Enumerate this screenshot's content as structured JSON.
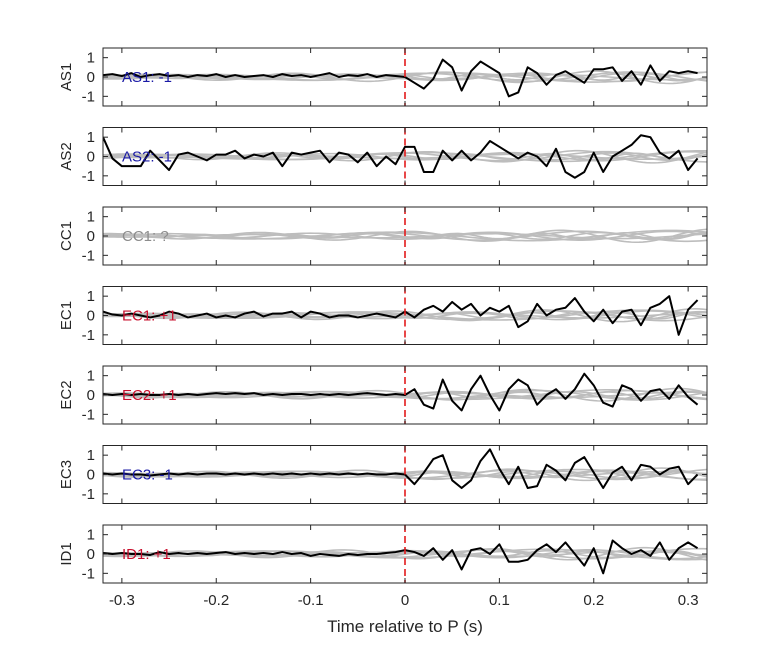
{
  "chart_data": {
    "type": "line",
    "xlabel": "Time relative to P (s)",
    "xlim": [
      -0.32,
      0.32
    ],
    "x_ticks": [
      "-0.3",
      "-0.2",
      "-0.1",
      "0",
      "0.1",
      "0.2",
      "0.3"
    ],
    "y_ticks": [
      "1",
      "0",
      "-1"
    ],
    "ylim": [
      -1.5,
      1.5
    ],
    "marker_line": {
      "x": 0,
      "color": "#e31a1c",
      "style": "dashed"
    },
    "trace_color": "#000000",
    "background_trace_color": "#bdbdbd",
    "polarity_colors": {
      "-1": "#1a1aa6",
      "+1": "#c8102e",
      "?": "#8c8c8c"
    },
    "panels": [
      {
        "ylabel": "AS1",
        "annotation": "AS1: -1",
        "polarity": "-1",
        "black_trace": true,
        "series": [
          {
            "name": "AS1",
            "x": [
              -0.32,
              -0.31,
              -0.3,
              -0.29,
              -0.28,
              -0.27,
              -0.26,
              -0.25,
              -0.24,
              -0.23,
              -0.22,
              -0.21,
              -0.2,
              -0.19,
              -0.18,
              -0.17,
              -0.16,
              -0.15,
              -0.14,
              -0.13,
              -0.12,
              -0.11,
              -0.1,
              -0.09,
              -0.08,
              -0.07,
              -0.06,
              -0.05,
              -0.04,
              -0.03,
              -0.02,
              -0.01,
              0,
              0.01,
              0.02,
              0.03,
              0.04,
              0.05,
              0.06,
              0.07,
              0.08,
              0.09,
              0.1,
              0.11,
              0.12,
              0.13,
              0.14,
              0.15,
              0.16,
              0.17,
              0.18,
              0.19,
              0.2,
              0.21,
              0.22,
              0.23,
              0.24,
              0.25,
              0.26,
              0.27,
              0.28,
              0.29,
              0.3,
              0.31
            ],
            "y": [
              0.1,
              0.15,
              0.05,
              0.2,
              0.0,
              0.1,
              0.15,
              0.05,
              0.1,
              0.0,
              0.1,
              0.05,
              0.15,
              0.0,
              0.1,
              0.0,
              0.05,
              0.1,
              0.0,
              0.15,
              0.05,
              0.1,
              0.0,
              0.1,
              0.2,
              0.0,
              0.1,
              0.05,
              0.15,
              0.0,
              0.1,
              0.05,
              0.0,
              -0.3,
              -0.6,
              -0.1,
              0.9,
              0.5,
              -0.7,
              0.3,
              0.8,
              0.5,
              0.2,
              -1.0,
              -0.8,
              0.5,
              0.2,
              -0.4,
              0.1,
              0.3,
              0.0,
              -0.3,
              0.4,
              0.4,
              0.5,
              -0.2,
              0.3,
              -0.4,
              0.6,
              -0.2,
              0.3,
              0.2,
              0.3,
              0.2
            ]
          }
        ]
      },
      {
        "ylabel": "AS2",
        "annotation": "AS2: -1",
        "polarity": "-1",
        "black_trace": true,
        "series": [
          {
            "name": "AS2",
            "x": [
              -0.32,
              -0.31,
              -0.3,
              -0.29,
              -0.28,
              -0.27,
              -0.26,
              -0.25,
              -0.24,
              -0.23,
              -0.22,
              -0.21,
              -0.2,
              -0.19,
              -0.18,
              -0.17,
              -0.16,
              -0.15,
              -0.14,
              -0.13,
              -0.12,
              -0.11,
              -0.1,
              -0.09,
              -0.08,
              -0.07,
              -0.06,
              -0.05,
              -0.04,
              -0.03,
              -0.02,
              -0.01,
              0,
              0.01,
              0.02,
              0.03,
              0.04,
              0.05,
              0.06,
              0.07,
              0.08,
              0.09,
              0.1,
              0.11,
              0.12,
              0.13,
              0.14,
              0.15,
              0.16,
              0.17,
              0.18,
              0.19,
              0.2,
              0.21,
              0.22,
              0.23,
              0.24,
              0.25,
              0.26,
              0.27,
              0.28,
              0.29,
              0.3,
              0.31
            ],
            "y": [
              1.0,
              -0.1,
              -0.5,
              -0.5,
              -0.5,
              0.3,
              -0.2,
              -0.7,
              0.1,
              0.2,
              0.0,
              -0.2,
              0.1,
              0.1,
              0.3,
              -0.1,
              0.1,
              0.0,
              0.2,
              -0.5,
              0.2,
              0.1,
              0.2,
              0.3,
              -0.3,
              0.2,
              0.1,
              -0.3,
              0.2,
              -0.5,
              0.0,
              -0.4,
              0.5,
              0.5,
              -0.8,
              -0.8,
              0.3,
              -0.2,
              0.3,
              -0.2,
              0.2,
              0.8,
              0.5,
              0.2,
              -0.1,
              0.2,
              0.0,
              -0.5,
              0.4,
              -0.8,
              -1.1,
              -0.8,
              0.2,
              -0.8,
              0.0,
              0.3,
              0.6,
              1.1,
              1.0,
              0.2,
              -0.1,
              0.3,
              -0.7,
              -0.1
            ]
          }
        ]
      },
      {
        "ylabel": "CC1",
        "annotation": "CC1: ?",
        "polarity": "?",
        "black_trace": false,
        "series": []
      },
      {
        "ylabel": "EC1",
        "annotation": "EC1: +1",
        "polarity": "+1",
        "black_trace": true,
        "series": [
          {
            "name": "EC1",
            "x": [
              -0.32,
              -0.31,
              -0.3,
              -0.29,
              -0.28,
              -0.27,
              -0.26,
              -0.25,
              -0.24,
              -0.23,
              -0.22,
              -0.21,
              -0.2,
              -0.19,
              -0.18,
              -0.17,
              -0.16,
              -0.15,
              -0.14,
              -0.13,
              -0.12,
              -0.11,
              -0.1,
              -0.09,
              -0.08,
              -0.07,
              -0.06,
              -0.05,
              -0.04,
              -0.03,
              -0.02,
              -0.01,
              0,
              0.01,
              0.02,
              0.03,
              0.04,
              0.05,
              0.06,
              0.07,
              0.08,
              0.09,
              0.1,
              0.11,
              0.12,
              0.13,
              0.14,
              0.15,
              0.16,
              0.17,
              0.18,
              0.19,
              0.2,
              0.21,
              0.22,
              0.23,
              0.24,
              0.25,
              0.26,
              0.27,
              0.28,
              0.29,
              0.3,
              0.31
            ],
            "y": [
              0.2,
              0.05,
              0.0,
              0.1,
              0.0,
              -0.1,
              0.0,
              0.2,
              0.1,
              -0.1,
              0.0,
              0.1,
              -0.1,
              0.0,
              -0.1,
              0.1,
              0.2,
              -0.05,
              0.1,
              0.1,
              0.2,
              -0.1,
              0.2,
              0.1,
              -0.1,
              0.0,
              0.0,
              -0.1,
              0.0,
              0.1,
              0.0,
              -0.1,
              0.2,
              -0.1,
              0.3,
              0.5,
              0.2,
              0.7,
              0.3,
              0.6,
              0.0,
              0.4,
              0.2,
              0.5,
              -0.6,
              -0.3,
              0.6,
              0.0,
              0.3,
              0.4,
              0.9,
              0.2,
              -0.3,
              0.3,
              -0.4,
              0.2,
              0.3,
              -0.5,
              0.4,
              0.6,
              1.0,
              -1.0,
              0.3,
              0.8
            ]
          }
        ]
      },
      {
        "ylabel": "EC2",
        "annotation": "EC2: +1",
        "polarity": "+1",
        "black_trace": true,
        "series": [
          {
            "name": "EC2",
            "x": [
              -0.32,
              -0.31,
              -0.3,
              -0.29,
              -0.28,
              -0.27,
              -0.26,
              -0.25,
              -0.24,
              -0.23,
              -0.22,
              -0.21,
              -0.2,
              -0.19,
              -0.18,
              -0.17,
              -0.16,
              -0.15,
              -0.14,
              -0.13,
              -0.12,
              -0.11,
              -0.1,
              -0.09,
              -0.08,
              -0.07,
              -0.06,
              -0.05,
              -0.04,
              -0.03,
              -0.02,
              -0.01,
              0,
              0.01,
              0.02,
              0.03,
              0.04,
              0.05,
              0.06,
              0.07,
              0.08,
              0.09,
              0.1,
              0.11,
              0.12,
              0.13,
              0.14,
              0.15,
              0.16,
              0.17,
              0.18,
              0.19,
              0.2,
              0.21,
              0.22,
              0.23,
              0.24,
              0.25,
              0.26,
              0.27,
              0.28,
              0.29,
              0.3,
              0.31
            ],
            "y": [
              0.05,
              0.0,
              0.05,
              0.0,
              0.05,
              0.0,
              0.0,
              0.05,
              0.0,
              0.05,
              0.0,
              0.05,
              0.1,
              0.05,
              0.1,
              0.05,
              0.1,
              0.0,
              0.05,
              0.0,
              0.05,
              0.05,
              0.0,
              0.05,
              0.0,
              0.05,
              0.0,
              0.05,
              0.1,
              0.05,
              0.0,
              0.05,
              0.0,
              0.3,
              -0.5,
              -0.7,
              0.8,
              -0.3,
              -0.8,
              0.3,
              1.0,
              0.0,
              -0.8,
              0.3,
              0.8,
              0.5,
              -0.5,
              0.0,
              0.3,
              -0.2,
              0.3,
              1.1,
              0.5,
              -0.4,
              -0.6,
              0.5,
              0.3,
              -0.3,
              0.2,
              0.3,
              -0.2,
              0.5,
              -0.1,
              -0.5
            ]
          }
        ]
      },
      {
        "ylabel": "EC3",
        "annotation": "EC3: -1",
        "polarity": "-1",
        "black_trace": true,
        "series": [
          {
            "name": "EC3",
            "x": [
              -0.32,
              -0.31,
              -0.3,
              -0.29,
              -0.28,
              -0.27,
              -0.26,
              -0.25,
              -0.24,
              -0.23,
              -0.22,
              -0.21,
              -0.2,
              -0.19,
              -0.18,
              -0.17,
              -0.16,
              -0.15,
              -0.14,
              -0.13,
              -0.12,
              -0.11,
              -0.1,
              -0.09,
              -0.08,
              -0.07,
              -0.06,
              -0.05,
              -0.04,
              -0.03,
              -0.02,
              -0.01,
              0,
              0.01,
              0.02,
              0.03,
              0.04,
              0.05,
              0.06,
              0.07,
              0.08,
              0.09,
              0.1,
              0.11,
              0.12,
              0.13,
              0.14,
              0.15,
              0.16,
              0.17,
              0.18,
              0.19,
              0.2,
              0.21,
              0.22,
              0.23,
              0.24,
              0.25,
              0.26,
              0.27,
              0.28,
              0.29,
              0.3,
              0.31
            ],
            "y": [
              0.05,
              0.0,
              0.05,
              0.0,
              0.0,
              -0.05,
              0.0,
              0.05,
              0.0,
              0.05,
              0.0,
              0.05,
              0.05,
              0.0,
              0.05,
              0.0,
              0.05,
              0.0,
              0.05,
              0.0,
              0.05,
              0.0,
              0.05,
              0.0,
              0.05,
              0.0,
              0.05,
              0.0,
              0.05,
              0.0,
              0.0,
              0.05,
              0.0,
              -0.5,
              0.1,
              0.8,
              1.0,
              -0.3,
              -0.7,
              -0.3,
              0.7,
              1.3,
              0.3,
              -0.5,
              0.4,
              -0.7,
              -0.6,
              0.5,
              0.2,
              -0.3,
              0.6,
              0.9,
              0.1,
              -0.7,
              0.1,
              0.4,
              -0.3,
              0.5,
              0.4,
              0.0,
              0.3,
              0.4,
              -0.5,
              0.0
            ]
          }
        ]
      },
      {
        "ylabel": "ID1",
        "annotation": "ID1: +1",
        "polarity": "+1",
        "black_trace": true,
        "series": [
          {
            "name": "ID1",
            "x": [
              -0.32,
              -0.31,
              -0.3,
              -0.29,
              -0.28,
              -0.27,
              -0.26,
              -0.25,
              -0.24,
              -0.23,
              -0.22,
              -0.21,
              -0.2,
              -0.19,
              -0.18,
              -0.17,
              -0.16,
              -0.15,
              -0.14,
              -0.13,
              -0.12,
              -0.11,
              -0.1,
              -0.09,
              -0.08,
              -0.07,
              -0.06,
              -0.05,
              -0.04,
              -0.03,
              -0.02,
              -0.01,
              0,
              0.01,
              0.02,
              0.03,
              0.04,
              0.05,
              0.06,
              0.07,
              0.08,
              0.09,
              0.1,
              0.11,
              0.12,
              0.13,
              0.14,
              0.15,
              0.16,
              0.17,
              0.18,
              0.19,
              0.2,
              0.21,
              0.22,
              0.23,
              0.24,
              0.25,
              0.26,
              0.27,
              0.28,
              0.29,
              0.3,
              0.31
            ],
            "y": [
              0.05,
              0.0,
              0.05,
              0.0,
              0.0,
              -0.05,
              0.1,
              0.0,
              0.05,
              0.0,
              0.05,
              0.0,
              0.05,
              0.1,
              0.0,
              0.05,
              0.0,
              0.05,
              0.0,
              0.1,
              0.0,
              0.05,
              -0.1,
              0.0,
              -0.05,
              -0.1,
              0.0,
              -0.05,
              0.0,
              0.0,
              0.05,
              0.1,
              0.2,
              0.1,
              -0.1,
              0.3,
              -0.3,
              0.2,
              -0.8,
              0.2,
              0.3,
              0.0,
              0.5,
              -0.4,
              -0.4,
              -0.3,
              0.2,
              0.5,
              0.1,
              0.6,
              0.0,
              -0.6,
              0.3,
              -1.0,
              0.7,
              0.3,
              0.0,
              0.2,
              -0.1,
              0.6,
              -0.3,
              0.3,
              0.6,
              0.3
            ]
          }
        ]
      }
    ],
    "background_traces": [
      {
        "amp": 0.35,
        "period": 0.16,
        "phase": 0.0
      },
      {
        "amp": 0.28,
        "period": 0.22,
        "phase": 1.1
      },
      {
        "amp": 0.2,
        "period": 0.12,
        "phase": 2.0
      },
      {
        "amp": 0.3,
        "period": 0.3,
        "phase": 0.6
      },
      {
        "amp": 0.18,
        "period": 0.09,
        "phase": 2.7
      },
      {
        "amp": 0.25,
        "period": 0.19,
        "phase": 3.5
      },
      {
        "amp": 0.15,
        "period": 0.26,
        "phase": 4.2
      }
    ]
  }
}
